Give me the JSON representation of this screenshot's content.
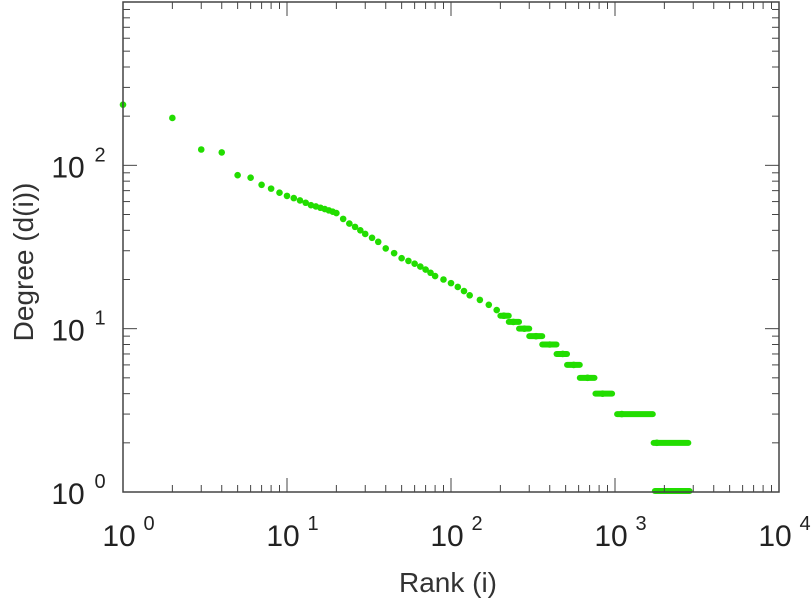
{
  "chart_data": {
    "type": "scatter",
    "title": "",
    "xlabel": "Rank (i)",
    "ylabel": "Degree (d(i))",
    "xscale": "log",
    "yscale": "log",
    "xlim": [
      1,
      10000
    ],
    "ylim": [
      1,
      1000
    ],
    "x_ticks": [
      {
        "value": 1,
        "base": "10",
        "exp": "0"
      },
      {
        "value": 10,
        "base": "10",
        "exp": "1"
      },
      {
        "value": 100,
        "base": "10",
        "exp": "2"
      },
      {
        "value": 1000,
        "base": "10",
        "exp": "3"
      },
      {
        "value": 10000,
        "base": "10",
        "exp": "4"
      }
    ],
    "y_ticks": [
      {
        "value": 1,
        "base": "10",
        "exp": "0"
      },
      {
        "value": 10,
        "base": "10",
        "exp": "1"
      },
      {
        "value": 100,
        "base": "10",
        "exp": "2"
      }
    ],
    "grid": false,
    "legend": "none",
    "marker_color": "#22dd00",
    "points": [
      {
        "x": 1,
        "y": 235
      },
      {
        "x": 2,
        "y": 195
      },
      {
        "x": 3,
        "y": 125
      },
      {
        "x": 4,
        "y": 120
      },
      {
        "x": 5,
        "y": 87
      },
      {
        "x": 6,
        "y": 84
      },
      {
        "x": 7,
        "y": 76
      },
      {
        "x": 8,
        "y": 72
      },
      {
        "x": 9,
        "y": 68
      },
      {
        "x": 10,
        "y": 65
      },
      {
        "x": 11,
        "y": 63
      },
      {
        "x": 12,
        "y": 61
      },
      {
        "x": 13,
        "y": 59
      },
      {
        "x": 14,
        "y": 57
      },
      {
        "x": 15,
        "y": 56
      },
      {
        "x": 16,
        "y": 55
      },
      {
        "x": 17,
        "y": 54
      },
      {
        "x": 18,
        "y": 53
      },
      {
        "x": 19,
        "y": 52
      },
      {
        "x": 20,
        "y": 51
      },
      {
        "x": 22,
        "y": 47
      },
      {
        "x": 24,
        "y": 44
      },
      {
        "x": 26,
        "y": 42
      },
      {
        "x": 28,
        "y": 40
      },
      {
        "x": 30,
        "y": 38
      },
      {
        "x": 33,
        "y": 36
      },
      {
        "x": 36,
        "y": 34
      },
      {
        "x": 40,
        "y": 31
      },
      {
        "x": 45,
        "y": 29
      },
      {
        "x": 50,
        "y": 27
      },
      {
        "x": 55,
        "y": 26
      },
      {
        "x": 60,
        "y": 25
      },
      {
        "x": 65,
        "y": 24
      },
      {
        "x": 70,
        "y": 23
      },
      {
        "x": 75,
        "y": 22
      },
      {
        "x": 80,
        "y": 21
      },
      {
        "x": 90,
        "y": 20
      },
      {
        "x": 100,
        "y": 19
      },
      {
        "x": 110,
        "y": 18
      },
      {
        "x": 120,
        "y": 17
      },
      {
        "x": 130,
        "y": 16
      },
      {
        "x": 150,
        "y": 15
      },
      {
        "x": 170,
        "y": 14
      },
      {
        "x": 190,
        "y": 13
      },
      {
        "x": 210,
        "y": 12
      },
      {
        "x": 240,
        "y": 11
      },
      {
        "x": 280,
        "y": 10
      },
      {
        "x": 330,
        "y": 9
      },
      {
        "x": 400,
        "y": 8
      },
      {
        "x": 480,
        "y": 7
      },
      {
        "x": 560,
        "y": 6
      },
      {
        "x": 680,
        "y": 5
      },
      {
        "x": 840,
        "y": 4
      },
      {
        "x": 1100,
        "y": 3
      },
      {
        "x": 1800,
        "y": 2
      }
    ],
    "plateaus": [
      {
        "y": 12,
        "x_start": 200,
        "x_end": 225
      },
      {
        "y": 11,
        "x_start": 225,
        "x_end": 260
      },
      {
        "y": 10,
        "x_start": 260,
        "x_end": 300
      },
      {
        "y": 9,
        "x_start": 300,
        "x_end": 360
      },
      {
        "y": 8,
        "x_start": 360,
        "x_end": 440
      },
      {
        "y": 7,
        "x_start": 440,
        "x_end": 510
      },
      {
        "y": 6,
        "x_start": 510,
        "x_end": 610
      },
      {
        "y": 5,
        "x_start": 610,
        "x_end": 750
      },
      {
        "y": 4,
        "x_start": 760,
        "x_end": 960
      },
      {
        "y": 3,
        "x_start": 1030,
        "x_end": 1700
      },
      {
        "y": 2,
        "x_start": 1720,
        "x_end": 2800
      }
    ]
  }
}
